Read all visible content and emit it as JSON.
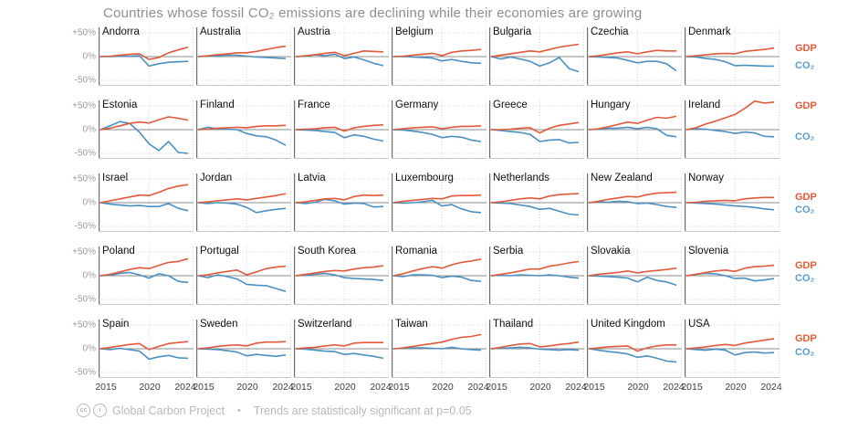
{
  "title": "Countries whose fossil CO₂ emissions are declining while their economies are growing",
  "footer": {
    "credit": "Global Carbon Project",
    "separator": "•",
    "note": "Trends are statistically significant at p=0.05",
    "license_icons": [
      "cc-icon",
      "attribution-icon"
    ]
  },
  "legend": {
    "gdp": "GDP",
    "co2": "CO₂"
  },
  "colors": {
    "gdp": "#e2593b",
    "co2": "#4a90c2",
    "zero_line": "#8c8c8c",
    "grid": "#cdcdcd",
    "title": "#8f8f8f"
  },
  "axes": {
    "y_ticks": [
      "+50%",
      "0%",
      "-50%"
    ],
    "y_tick_values": [
      50,
      0,
      -50
    ],
    "x_ticks": [
      "2015",
      "2020",
      "2024"
    ],
    "x_tick_years": [
      2015,
      2020,
      2024
    ]
  },
  "chart_data": {
    "type": "line",
    "x": [
      2015,
      2016,
      2017,
      2018,
      2019,
      2020,
      2021,
      2022,
      2023,
      2024
    ],
    "ylim": [
      -62,
      62
    ],
    "unit": "% change since 2015",
    "grid": true,
    "columns": 7,
    "rows": 5,
    "series_names": [
      "GDP",
      "CO₂"
    ],
    "countries": [
      {
        "name": "Andorra",
        "gdp": [
          0,
          1,
          3,
          5,
          6,
          -6,
          -2,
          8,
          14,
          20
        ],
        "co2": [
          0,
          0,
          1,
          1,
          2,
          -20,
          -15,
          -12,
          -11,
          -10
        ]
      },
      {
        "name": "Australia",
        "gdp": [
          0,
          2,
          4,
          6,
          8,
          8,
          11,
          15,
          19,
          22
        ],
        "co2": [
          0,
          1,
          2,
          3,
          3,
          1,
          -1,
          -2,
          -3,
          -4
        ]
      },
      {
        "name": "Austria",
        "gdp": [
          0,
          2,
          4,
          7,
          9,
          2,
          7,
          12,
          11,
          10
        ],
        "co2": [
          0,
          1,
          4,
          2,
          5,
          -4,
          -1,
          -7,
          -14,
          -19
        ]
      },
      {
        "name": "Belgium",
        "gdp": [
          0,
          1,
          3,
          5,
          7,
          2,
          9,
          12,
          13,
          15
        ],
        "co2": [
          0,
          0,
          -1,
          -2,
          -3,
          -9,
          -6,
          -10,
          -13,
          -14
        ]
      },
      {
        "name": "Bulgaria",
        "gdp": [
          0,
          3,
          6,
          9,
          12,
          10,
          15,
          20,
          23,
          26
        ],
        "co2": [
          0,
          -5,
          -1,
          -5,
          -10,
          -20,
          -13,
          -2,
          -25,
          -32
        ]
      },
      {
        "name": "Czechia",
        "gdp": [
          0,
          2,
          5,
          8,
          10,
          6,
          10,
          13,
          12,
          12
        ],
        "co2": [
          0,
          -1,
          -2,
          -3,
          -8,
          -13,
          -10,
          -10,
          -15,
          -30
        ]
      },
      {
        "name": "Denmark",
        "gdp": [
          0,
          2,
          4,
          6,
          7,
          6,
          11,
          13,
          15,
          18
        ],
        "co2": [
          0,
          -1,
          -4,
          -6,
          -11,
          -19,
          -18,
          -19,
          -20,
          -20
        ]
      },
      {
        "name": "Estonia",
        "gdp": [
          0,
          3,
          8,
          13,
          16,
          14,
          21,
          27,
          24,
          20
        ],
        "co2": [
          0,
          8,
          17,
          13,
          -5,
          -30,
          -44,
          -25,
          -48,
          -50
        ]
      },
      {
        "name": "Finland",
        "gdp": [
          0,
          1,
          3,
          4,
          5,
          4,
          7,
          8,
          8,
          9
        ],
        "co2": [
          0,
          5,
          2,
          1,
          0,
          -8,
          -13,
          -15,
          -22,
          -33
        ]
      },
      {
        "name": "France",
        "gdp": [
          0,
          1,
          2,
          4,
          5,
          -3,
          4,
          7,
          9,
          10
        ],
        "co2": [
          0,
          -1,
          -2,
          -4,
          -6,
          -17,
          -11,
          -14,
          -20,
          -24
        ]
      },
      {
        "name": "Germany",
        "gdp": [
          0,
          2,
          4,
          5,
          6,
          2,
          5,
          7,
          7,
          8
        ],
        "co2": [
          0,
          -1,
          -3,
          -6,
          -10,
          -17,
          -14,
          -16,
          -22,
          -25
        ]
      },
      {
        "name": "Greece",
        "gdp": [
          0,
          0,
          1,
          3,
          4,
          -7,
          3,
          9,
          12,
          15
        ],
        "co2": [
          0,
          -2,
          -4,
          -6,
          -10,
          -25,
          -22,
          -21,
          -28,
          -27
        ]
      },
      {
        "name": "Hungary",
        "gdp": [
          0,
          2,
          6,
          11,
          16,
          13,
          20,
          26,
          24,
          28
        ],
        "co2": [
          0,
          1,
          3,
          3,
          5,
          2,
          5,
          2,
          -12,
          -15
        ]
      },
      {
        "name": "Ireland",
        "gdp": [
          0,
          4,
          12,
          18,
          25,
          32,
          45,
          60,
          56,
          58
        ],
        "co2": [
          0,
          2,
          1,
          -2,
          -4,
          -8,
          -5,
          -7,
          -14,
          -15
        ]
      },
      {
        "name": "Israel",
        "gdp": [
          0,
          4,
          8,
          12,
          16,
          15,
          22,
          30,
          35,
          38
        ],
        "co2": [
          0,
          -3,
          -5,
          -7,
          -6,
          -8,
          -8,
          -2,
          -12,
          -17
        ]
      },
      {
        "name": "Jordan",
        "gdp": [
          0,
          2,
          4,
          6,
          8,
          6,
          9,
          12,
          15,
          19
        ],
        "co2": [
          0,
          -2,
          0,
          -1,
          -3,
          -10,
          -21,
          -17,
          -14,
          -12
        ]
      },
      {
        "name": "Latvia",
        "gdp": [
          0,
          2,
          5,
          8,
          9,
          6,
          13,
          16,
          15,
          16
        ],
        "co2": [
          0,
          -2,
          1,
          7,
          4,
          -3,
          -1,
          -2,
          -9,
          -8
        ]
      },
      {
        "name": "Luxembourg",
        "gdp": [
          0,
          3,
          5,
          7,
          9,
          8,
          14,
          15,
          15,
          16
        ],
        "co2": [
          0,
          -1,
          0,
          2,
          5,
          -7,
          -4,
          -13,
          -19,
          -21
        ]
      },
      {
        "name": "Netherlands",
        "gdp": [
          0,
          2,
          5,
          8,
          10,
          8,
          14,
          17,
          18,
          19
        ],
        "co2": [
          0,
          -1,
          -2,
          -5,
          -8,
          -14,
          -12,
          -18,
          -24,
          -26
        ]
      },
      {
        "name": "New Zealand",
        "gdp": [
          0,
          3,
          7,
          10,
          13,
          12,
          17,
          20,
          21,
          22
        ],
        "co2": [
          0,
          2,
          1,
          3,
          2,
          -2,
          -1,
          -4,
          -8,
          -10
        ]
      },
      {
        "name": "Norway",
        "gdp": [
          0,
          1,
          3,
          4,
          5,
          4,
          8,
          10,
          11,
          11
        ],
        "co2": [
          0,
          -1,
          -2,
          -3,
          -5,
          -7,
          -8,
          -10,
          -13,
          -15
        ]
      },
      {
        "name": "Poland",
        "gdp": [
          0,
          3,
          8,
          13,
          17,
          15,
          22,
          28,
          30,
          36
        ],
        "co2": [
          0,
          1,
          5,
          7,
          2,
          -5,
          4,
          0,
          -12,
          -14
        ]
      },
      {
        "name": "Portugal",
        "gdp": [
          0,
          2,
          6,
          9,
          12,
          2,
          8,
          15,
          18,
          20
        ],
        "co2": [
          0,
          -4,
          2,
          -2,
          -7,
          -18,
          -20,
          -21,
          -27,
          -33
        ]
      },
      {
        "name": "South Korea",
        "gdp": [
          0,
          3,
          6,
          9,
          11,
          10,
          14,
          17,
          18,
          21
        ],
        "co2": [
          0,
          1,
          3,
          5,
          2,
          -4,
          -6,
          -7,
          -8,
          -10
        ]
      },
      {
        "name": "Romania",
        "gdp": [
          0,
          4,
          10,
          15,
          19,
          16,
          23,
          28,
          31,
          35
        ],
        "co2": [
          0,
          -2,
          2,
          2,
          1,
          -4,
          -1,
          -3,
          -10,
          -12
        ]
      },
      {
        "name": "Serbia",
        "gdp": [
          0,
          3,
          6,
          10,
          14,
          14,
          20,
          23,
          27,
          30
        ],
        "co2": [
          0,
          1,
          0,
          2,
          1,
          0,
          2,
          0,
          -3,
          -5
        ]
      },
      {
        "name": "Slovakia",
        "gdp": [
          0,
          3,
          5,
          7,
          10,
          6,
          9,
          11,
          13,
          16
        ],
        "co2": [
          0,
          -1,
          -2,
          -3,
          -5,
          -13,
          -3,
          -10,
          -13,
          -20
        ]
      },
      {
        "name": "Slovenia",
        "gdp": [
          0,
          3,
          7,
          10,
          12,
          9,
          16,
          19,
          20,
          22
        ],
        "co2": [
          0,
          3,
          5,
          4,
          0,
          -6,
          -5,
          -11,
          -9,
          -6
        ]
      },
      {
        "name": "Spain",
        "gdp": [
          0,
          3,
          6,
          9,
          11,
          -2,
          5,
          11,
          13,
          15
        ],
        "co2": [
          0,
          -2,
          1,
          -2,
          -5,
          -22,
          -17,
          -14,
          -19,
          -20
        ]
      },
      {
        "name": "Sweden",
        "gdp": [
          0,
          2,
          5,
          7,
          8,
          6,
          12,
          14,
          14,
          15
        ],
        "co2": [
          0,
          -1,
          -2,
          -4,
          -7,
          -15,
          -12,
          -14,
          -16,
          -13
        ]
      },
      {
        "name": "Switzerland",
        "gdp": [
          0,
          2,
          3,
          6,
          8,
          6,
          12,
          13,
          13,
          13
        ],
        "co2": [
          0,
          -1,
          -3,
          -5,
          -6,
          -12,
          -10,
          -13,
          -16,
          -20
        ]
      },
      {
        "name": "Taiwan",
        "gdp": [
          0,
          2,
          5,
          8,
          11,
          14,
          20,
          24,
          26,
          30
        ],
        "co2": [
          0,
          1,
          2,
          2,
          1,
          0,
          3,
          0,
          -2,
          -3
        ]
      },
      {
        "name": "Thailand",
        "gdp": [
          0,
          3,
          7,
          10,
          11,
          4,
          6,
          9,
          11,
          14
        ],
        "co2": [
          0,
          1,
          2,
          3,
          2,
          -1,
          -2,
          -3,
          -2,
          -3
        ]
      },
      {
        "name": "United Kingdom",
        "gdp": [
          0,
          2,
          4,
          5,
          6,
          -5,
          2,
          6,
          8,
          8
        ],
        "co2": [
          0,
          -3,
          -6,
          -8,
          -11,
          -18,
          -15,
          -20,
          -26,
          -28
        ]
      },
      {
        "name": "USA",
        "gdp": [
          0,
          2,
          4,
          7,
          9,
          7,
          12,
          15,
          18,
          21
        ],
        "co2": [
          0,
          -2,
          -3,
          -1,
          -3,
          -13,
          -8,
          -7,
          -9,
          -8
        ]
      }
    ]
  }
}
